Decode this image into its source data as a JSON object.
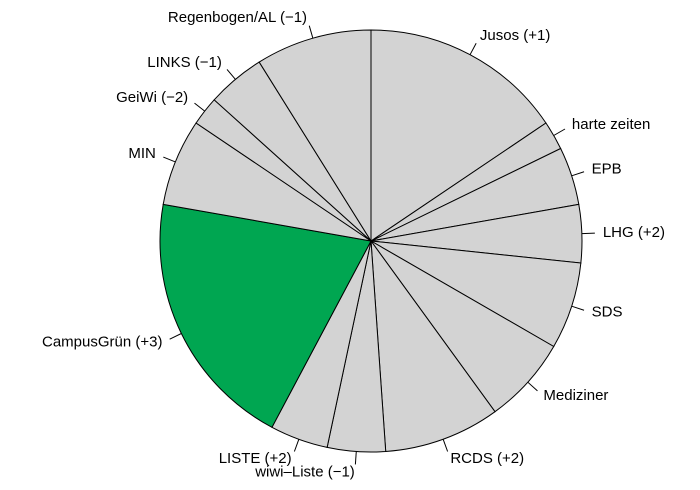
{
  "chart_data": {
    "type": "pie",
    "title": "",
    "start_angle_deg": 90,
    "direction": "clockwise",
    "colors": {
      "default": "#d3d3d3",
      "highlight": "#00a651",
      "outline": "#000000"
    },
    "slices": [
      {
        "label": "Jusos (+1)",
        "value": 7,
        "color": "#d3d3d3"
      },
      {
        "label": "harte zeiten",
        "value": 1,
        "color": "#d3d3d3"
      },
      {
        "label": "EPB",
        "value": 2,
        "color": "#d3d3d3"
      },
      {
        "label": "LHG (+2)",
        "value": 2,
        "color": "#d3d3d3"
      },
      {
        "label": "SDS",
        "value": 3,
        "color": "#d3d3d3"
      },
      {
        "label": "Mediziner",
        "value": 3,
        "color": "#d3d3d3"
      },
      {
        "label": "RCDS (+2)",
        "value": 4,
        "color": "#d3d3d3"
      },
      {
        "label": "wiwi–Liste (−1)",
        "value": 2,
        "color": "#d3d3d3"
      },
      {
        "label": "LISTE (+2)",
        "value": 2,
        "color": "#d3d3d3"
      },
      {
        "label": "CampusGrün (+3)",
        "value": 9,
        "color": "#00a651"
      },
      {
        "label": "MIN",
        "value": 3,
        "color": "#d3d3d3"
      },
      {
        "label": "GeiWi (−2)",
        "value": 1,
        "color": "#d3d3d3"
      },
      {
        "label": "LINKS (−1)",
        "value": 2,
        "color": "#d3d3d3"
      },
      {
        "label": "Regenbogen/AL (−1)",
        "value": 4,
        "color": "#d3d3d3"
      }
    ]
  }
}
